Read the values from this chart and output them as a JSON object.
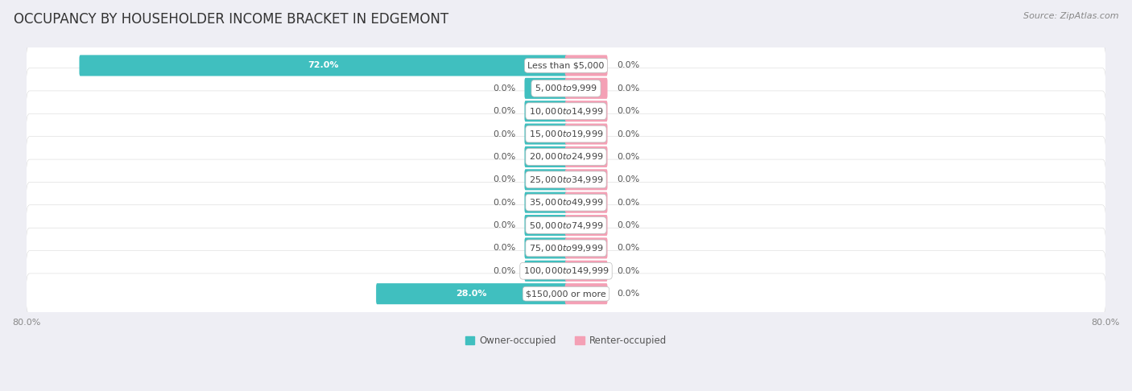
{
  "title": "OCCUPANCY BY HOUSEHOLDER INCOME BRACKET IN EDGEMONT",
  "source": "Source: ZipAtlas.com",
  "categories": [
    "Less than $5,000",
    "$5,000 to $9,999",
    "$10,000 to $14,999",
    "$15,000 to $19,999",
    "$20,000 to $24,999",
    "$25,000 to $34,999",
    "$35,000 to $49,999",
    "$50,000 to $74,999",
    "$75,000 to $99,999",
    "$100,000 to $149,999",
    "$150,000 or more"
  ],
  "owner_values": [
    72.0,
    0.0,
    0.0,
    0.0,
    0.0,
    0.0,
    0.0,
    0.0,
    0.0,
    0.0,
    28.0
  ],
  "renter_values": [
    0.0,
    0.0,
    0.0,
    0.0,
    0.0,
    0.0,
    0.0,
    0.0,
    0.0,
    0.0,
    0.0
  ],
  "owner_color": "#40BFBF",
  "renter_color": "#F4A0B5",
  "bg_color": "#eeeef4",
  "row_color_even": "#e2e2ec",
  "row_color_odd": "#d8d8e4",
  "xlim": 80.0,
  "title_fontsize": 12,
  "cat_label_fontsize": 8,
  "value_fontsize": 8,
  "axis_label_fontsize": 8,
  "source_fontsize": 8,
  "legend_fontsize": 8.5,
  "bar_height": 0.62,
  "stub_size": 6.0,
  "cat_label_color": "#444444",
  "value_color_outside": "#555555",
  "value_color_inside": "#ffffff"
}
